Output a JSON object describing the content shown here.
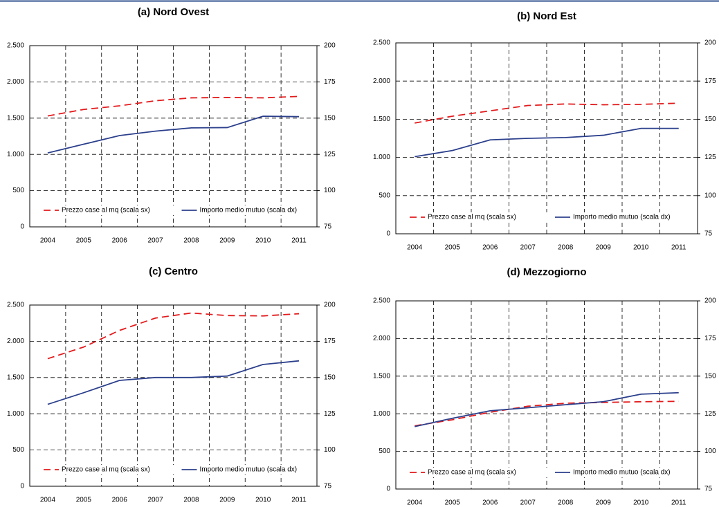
{
  "chart_data": [
    {
      "type": "line",
      "title": "(a) Nord Ovest",
      "categories": [
        "2004",
        "2005",
        "2006",
        "2007",
        "2008",
        "2009",
        "2010",
        "2011"
      ],
      "series": [
        {
          "name": "Prezzo case al mq (scala sx)",
          "color": "#e31a1c",
          "dashed": true,
          "values": [
            1530,
            1620,
            1670,
            1740,
            1780,
            1785,
            1780,
            1800
          ]
        },
        {
          "name": "Importo medio mutuo (scala dx)",
          "color": "#2b3f8c",
          "axis": "y2",
          "values": [
            126,
            132,
            138,
            141,
            143.3,
            143.5,
            151.3,
            151
          ]
        }
      ],
      "ylim": [
        0,
        2500
      ],
      "yticks": [
        0,
        500,
        {
          "value": 1000,
          "label": "1.000"
        },
        {
          "value": 1500,
          "label": "1.500"
        },
        {
          "value": 2000,
          "label": "2.000"
        },
        {
          "value": 2500,
          "label": "2.500"
        }
      ],
      "y2lim": [
        75,
        200
      ],
      "y2ticks": [
        75,
        100,
        125,
        150,
        175,
        200
      ],
      "grid": true,
      "legend": "bottom"
    },
    {
      "type": "line",
      "title": "(b) Nord Est",
      "categories": [
        "2004",
        "2005",
        "2006",
        "2007",
        "2008",
        "2009",
        "2010",
        "2011"
      ],
      "series": [
        {
          "name": "Prezzo case al mq (scala sx)",
          "color": "#e31a1c",
          "dashed": true,
          "values": [
            1450,
            1540,
            1610,
            1680,
            1700,
            1690,
            1695,
            1710
          ]
        },
        {
          "name": "Importo medio mutuo (scala dx)",
          "color": "#2b3f8c",
          "axis": "y2",
          "values": [
            125.5,
            129.5,
            136.5,
            137.5,
            138,
            139.5,
            144,
            144
          ]
        }
      ],
      "ylim": [
        0,
        2500
      ],
      "yticks": [
        0,
        500,
        {
          "value": 1000,
          "label": "1.000"
        },
        {
          "value": 1500,
          "label": "1.500"
        },
        {
          "value": 2000,
          "label": "2.000"
        },
        {
          "value": 2500,
          "label": "2.500"
        }
      ],
      "y2lim": [
        75,
        200
      ],
      "y2ticks": [
        75,
        100,
        125,
        150,
        175,
        200
      ],
      "grid": true,
      "legend": "bottom"
    },
    {
      "type": "line",
      "title": "(c) Centro",
      "categories": [
        "2004",
        "2005",
        "2006",
        "2007",
        "2008",
        "2009",
        "2010",
        "2011"
      ],
      "series": [
        {
          "name": "Prezzo case al mq (scala sx)",
          "color": "#e31a1c",
          "dashed": true,
          "values": [
            1760,
            1920,
            2150,
            2320,
            2390,
            2355,
            2350,
            2380
          ]
        },
        {
          "name": "Importo medio mutuo (scala dx)",
          "color": "#2b3f8c",
          "axis": "y2",
          "values": [
            131.5,
            139.5,
            148,
            150,
            150,
            151,
            159,
            161.5
          ]
        }
      ],
      "ylim": [
        0,
        2500
      ],
      "yticks": [
        0,
        500,
        {
          "value": 1000,
          "label": "1.000"
        },
        {
          "value": 1500,
          "label": "1.500"
        },
        {
          "value": 2000,
          "label": "2.000"
        },
        {
          "value": 2500,
          "label": "2.500"
        }
      ],
      "y2lim": [
        75,
        200
      ],
      "y2ticks": [
        75,
        100,
        125,
        150,
        175,
        200
      ],
      "grid": true,
      "legend": "bottom"
    },
    {
      "type": "line",
      "title": "(d) Mezzogiorno",
      "categories": [
        "2004",
        "2005",
        "2006",
        "2007",
        "2008",
        "2009",
        "2010",
        "2011"
      ],
      "series": [
        {
          "name": "Prezzo case al mq (scala sx)",
          "color": "#e31a1c",
          "dashed": true,
          "values": [
            840,
            920,
            1020,
            1100,
            1140,
            1150,
            1160,
            1165
          ]
        },
        {
          "name": "Importo medio mutuo (scala dx)",
          "color": "#2b3f8c",
          "axis": "y2",
          "values": [
            116.5,
            122,
            127,
            129,
            131,
            133,
            138,
            139
          ]
        }
      ],
      "ylim": [
        0,
        2500
      ],
      "yticks": [
        0,
        500,
        {
          "value": 1000,
          "label": "1.000"
        },
        {
          "value": 1500,
          "label": "1.500"
        },
        {
          "value": 2000,
          "label": "2.000"
        },
        {
          "value": 2500,
          "label": "2.500"
        }
      ],
      "y2lim": [
        75,
        200
      ],
      "y2ticks": [
        75,
        100,
        125,
        150,
        175,
        200
      ],
      "grid": true,
      "legend": "bottom"
    }
  ]
}
